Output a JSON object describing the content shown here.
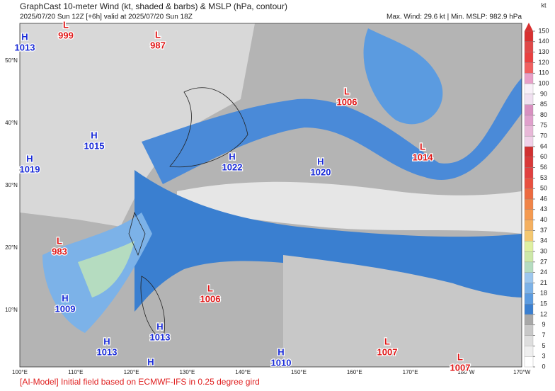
{
  "header": {
    "title": "GraphCast 10-meter Wind (kt, shaded & barbs) & MSLP (hPa, contour)",
    "subtitle": "2025/07/20 Sun 12Z [+6h] valid at 2025/07/20 Sun 18Z",
    "stats": "Max. Wind: 29.6 kt | Min. MSLP: 982.9 hPa"
  },
  "map": {
    "lon_labels": [
      "100°E",
      "110°E",
      "120°E",
      "130°E",
      "140°E",
      "150°E",
      "160°E",
      "170°E",
      "180°W",
      "170°W"
    ],
    "lat_labels": [
      "10°N",
      "20°N",
      "30°N",
      "40°N",
      "50°N"
    ],
    "centers": [
      {
        "kind": "H",
        "value": "1013"
      },
      {
        "kind": "L",
        "value": "999"
      },
      {
        "kind": "L",
        "value": "987"
      },
      {
        "kind": "L",
        "value": "1006"
      },
      {
        "kind": "L",
        "value": "1014"
      },
      {
        "kind": "H",
        "value": "1015"
      },
      {
        "kind": "H",
        "value": "1019"
      },
      {
        "kind": "H",
        "value": "1022"
      },
      {
        "kind": "H",
        "value": "1020"
      },
      {
        "kind": "L",
        "value": "983"
      },
      {
        "kind": "L",
        "value": "1006"
      },
      {
        "kind": "H",
        "value": "1009"
      },
      {
        "kind": "H",
        "value": "1013"
      },
      {
        "kind": "H",
        "value": "1013"
      },
      {
        "kind": "H",
        "value": "1010"
      },
      {
        "kind": "L",
        "value": "1007"
      },
      {
        "kind": "L",
        "value": "1007"
      },
      {
        "kind": "H"
      }
    ]
  },
  "colorbar": {
    "unit": "kt",
    "ticks": [
      0,
      3,
      5,
      7,
      9,
      12,
      15,
      18,
      21,
      24,
      27,
      30,
      34,
      37,
      40,
      43,
      46,
      50,
      53,
      56,
      60,
      64,
      70,
      75,
      80,
      85,
      90,
      100,
      110,
      120,
      130,
      140,
      150
    ],
    "colors": [
      "#ffffff",
      "#efefef",
      "#dedede",
      "#c8c8c8",
      "#a8a8a8",
      "#3a7fd0",
      "#5b9be0",
      "#7cb2e8",
      "#9dc7ee",
      "#b5dcc0",
      "#cde8a8",
      "#dff0a0",
      "#f5c870",
      "#f5b060",
      "#f59a50",
      "#f08448",
      "#ec6a40",
      "#e85040",
      "#e04040",
      "#d83838",
      "#d03030",
      "#f0d0e8",
      "#e8b8d8",
      "#e0a0cc",
      "#d890c0",
      "#f0e0f0",
      "#f8f0f8",
      "#e8a0c8",
      "#f06060",
      "#e84040",
      "#e04848",
      "#d83030"
    ]
  },
  "footer": "[AI-Model] Initial field based on ECMWF-IFS in 0.25 degree gird"
}
